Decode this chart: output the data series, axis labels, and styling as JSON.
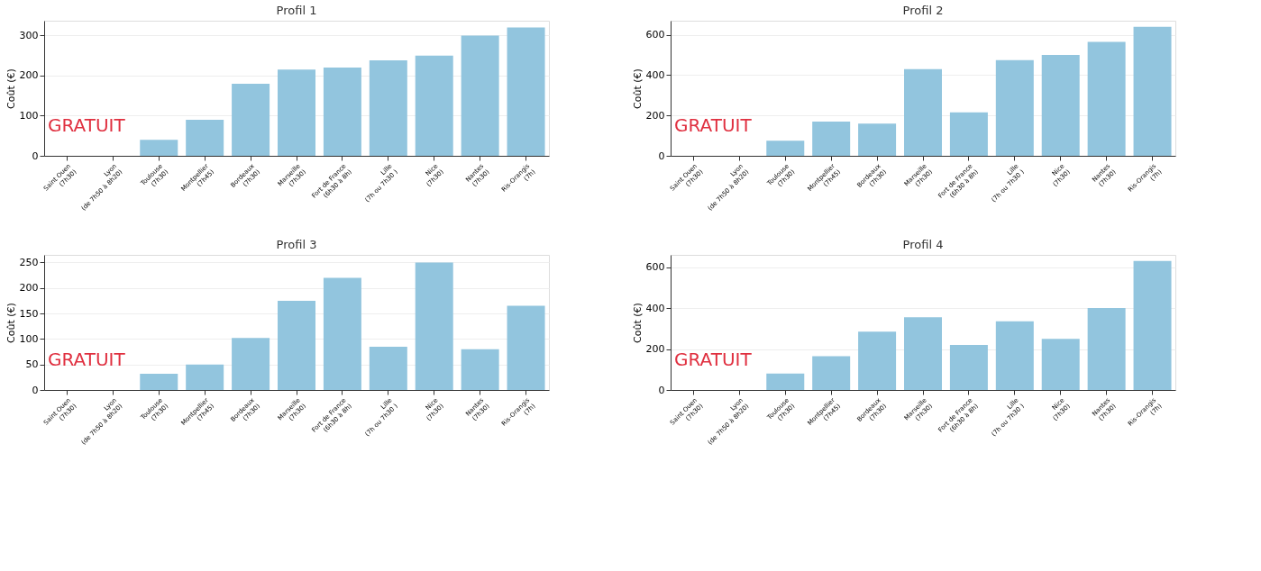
{
  "chart_data": [
    {
      "type": "bar",
      "title": "Profil 1",
      "ylabel": "Coût (€)",
      "categories": [
        "Saint Ouen\n(7h30)",
        "Lyon\n(de 7h50 à 8h20)",
        "Toulouse\n(7h30)",
        "Montpellier\n(7h45)",
        "Bordeaux\n(7h30)",
        "Marseille\n(7h30)",
        "Fort de France\n(6h30 à 8h)",
        "Lille\n(7h ou 7h30 )",
        "Nice\n(7h30)",
        "Nantes\n(7h30)",
        "Ris-Orangis\n(7h)"
      ],
      "values": [
        0,
        0,
        40,
        90,
        180,
        215,
        220,
        238,
        250,
        300,
        320
      ],
      "color": "#92c5de",
      "ylim": [
        0,
        337
      ],
      "yticks": [
        0,
        100,
        200,
        300
      ],
      "grid": "y",
      "annotations": [
        "GRATUIT"
      ]
    },
    {
      "type": "bar",
      "title": "Profil 2",
      "ylabel": "Coût (€)",
      "categories": [
        "Saint Ouen\n(7h30)",
        "Lyon\n(de 7h50 à 8h20)",
        "Toulouse\n(7h30)",
        "Montpellier\n(7h45)",
        "Bordeaux\n(7h30)",
        "Marseille\n(7h30)",
        "Fort de France\n(6h30 à 8h)",
        "Lille\n(7h ou 7h30 )",
        "Nice\n(7h30)",
        "Nantes\n(7h30)",
        "Ris-Orangis\n(7h)"
      ],
      "values": [
        0,
        0,
        75,
        170,
        160,
        430,
        215,
        475,
        500,
        565,
        640
      ],
      "color": "#92c5de",
      "ylim": [
        0,
        670
      ],
      "yticks": [
        0,
        200,
        400,
        600
      ],
      "grid": "y",
      "annotations": [
        "GRATUIT"
      ]
    },
    {
      "type": "bar",
      "title": "Profil 3",
      "ylabel": "Coût (€)",
      "categories": [
        "Saint Ouen\n(7h30)",
        "Lyon\n(de 7h50 à 8h20)",
        "Toulouse\n(7h30)",
        "Montpellier\n(7h45)",
        "Bordeaux\n(7h30)",
        "Marseille\n(7h30)",
        "Fort de France\n(6h30 à 8h)",
        "Lille\n(7h ou 7h30 )",
        "Nice\n(7h30)",
        "Nantes\n(7h30)",
        "Ris-Orangis\n(7h)"
      ],
      "values": [
        0,
        0,
        32,
        50,
        102,
        175,
        220,
        85,
        250,
        80,
        165
      ],
      "color": "#92c5de",
      "ylim": [
        0,
        265
      ],
      "yticks": [
        0,
        50,
        100,
        150,
        200,
        250
      ],
      "grid": "y",
      "annotations": [
        "GRATUIT"
      ]
    },
    {
      "type": "bar",
      "title": "Profil 4",
      "ylabel": "Coût (€)",
      "categories": [
        "Saint Ouen\n(7h30)",
        "Lyon\n(de 7h50 à 8h20)",
        "Toulouse\n(7h30)",
        "Montpellier\n(7h45)",
        "Bordeaux\n(7h30)",
        "Marseille\n(7h30)",
        "Fort de France\n(6h30 à 8h)",
        "Lille\n(7h ou 7h30 )",
        "Nice\n(7h30)",
        "Nantes\n(7h30)",
        "Ris-Orangis\n(7h)"
      ],
      "values": [
        0,
        0,
        80,
        165,
        285,
        355,
        220,
        335,
        250,
        400,
        630
      ],
      "color": "#92c5de",
      "ylim": [
        0,
        660
      ],
      "yticks": [
        0,
        200,
        400,
        600
      ],
      "grid": "y",
      "annotations": [
        "GRATUIT"
      ]
    }
  ]
}
